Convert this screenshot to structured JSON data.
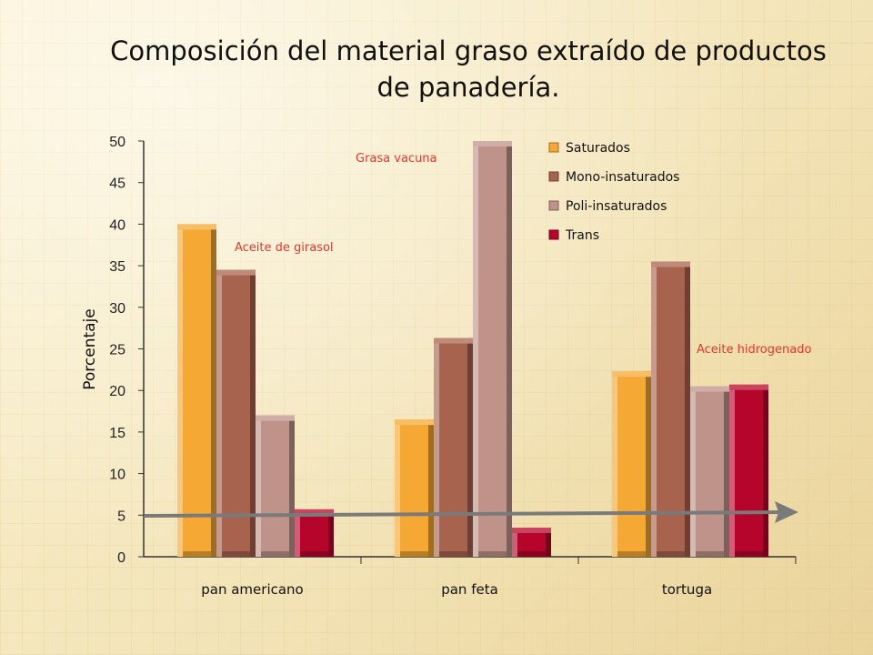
{
  "chart_data": {
    "type": "bar",
    "title": "Composición del material graso extraído de productos de panadería.",
    "ylabel": "Porcentaje",
    "xlabel": "",
    "ylim": [
      0,
      50
    ],
    "yticks": [
      0,
      5,
      10,
      15,
      20,
      25,
      30,
      35,
      40,
      45,
      50
    ],
    "categories": [
      "pan americano",
      "pan feta",
      "tortuga"
    ],
    "series": [
      {
        "name": "Saturados",
        "color": "#f5a833",
        "values": [
          40,
          16.5,
          22.3
        ]
      },
      {
        "name": "Mono-insaturados",
        "color": "#a8634e",
        "values": [
          34.5,
          26.3,
          35.5
        ]
      },
      {
        "name": "Poli-insaturados",
        "color": "#bf938a",
        "values": [
          17,
          50,
          20.5
        ]
      },
      {
        "name": "Trans",
        "color": "#b5052a",
        "values": [
          5.7,
          3.5,
          20.7
        ]
      }
    ],
    "legend": "top-right",
    "annotations": [
      {
        "text": "Aceite de girasol",
        "category": "pan americano"
      },
      {
        "text": "Grasa vacuna",
        "category": "pan feta"
      },
      {
        "text": "Aceite hidrogenado",
        "category": "tortuga"
      }
    ],
    "reference_arrow_value": 5
  }
}
